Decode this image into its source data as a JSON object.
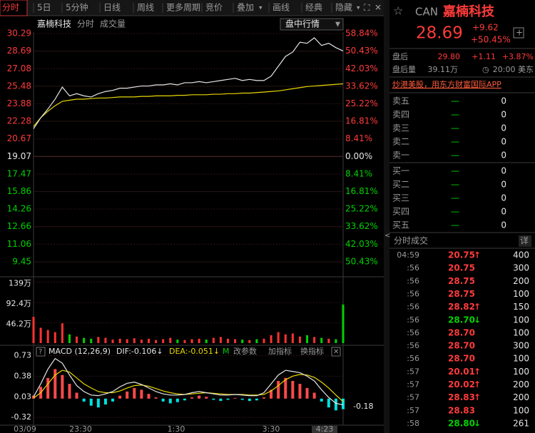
{
  "toolbar": {
    "tabs": [
      "分时",
      "5日",
      "5分钟",
      "日线",
      "周线",
      "更多周期",
      "竞价",
      "叠加",
      "画线",
      "经典",
      "隐藏"
    ]
  },
  "chart": {
    "name": "嘉楠科技",
    "labels": [
      "分时",
      "成交量"
    ],
    "mode": "盘中行情",
    "price": {
      "ylim": [
        9.45,
        30.29
      ],
      "yticks": [
        30.29,
        28.69,
        27.08,
        25.48,
        23.88,
        22.28,
        20.67,
        19.07,
        17.47,
        15.86,
        14.26,
        12.66,
        11.06,
        9.45
      ],
      "pct_ticks": [
        {
          "value": 58.84,
          "label": "58.84%"
        },
        {
          "value": 50.43,
          "label": "50.43%"
        },
        {
          "value": 42.03,
          "label": "42.03%"
        },
        {
          "value": 33.62,
          "label": "33.62%"
        },
        {
          "value": 25.22,
          "label": "25.22%"
        },
        {
          "value": 16.81,
          "label": "16.81%"
        },
        {
          "value": 8.41,
          "label": "8.41%"
        },
        {
          "value": 0,
          "label": "0.00%"
        },
        {
          "value": -8.41,
          "label": "8.41%"
        },
        {
          "value": -16.81,
          "label": "16.81%"
        },
        {
          "value": -25.22,
          "label": "25.22%"
        },
        {
          "value": -33.62,
          "label": "33.62%"
        },
        {
          "value": -42.03,
          "label": "42.03%"
        },
        {
          "value": -50.43,
          "label": "50.43%"
        }
      ],
      "values": [
        21.6,
        22.6,
        23.4,
        24.3,
        25.4,
        24.6,
        24.8,
        24.6,
        24.5,
        24.8,
        25.0,
        25.1,
        25.3,
        25.3,
        25.4,
        25.5,
        25.5,
        25.6,
        25.6,
        25.7,
        25.6,
        25.8,
        25.8,
        25.9,
        25.8,
        25.9,
        26.0,
        26.1,
        26.2,
        26.0,
        26.1,
        26.0,
        26.0,
        26.4,
        27.3,
        28.2,
        28.6,
        29.5,
        29.4,
        29.9,
        29.2,
        29.4,
        29.0,
        28.7
      ],
      "avg": [
        21.8,
        22.6,
        23.2,
        23.7,
        24.1,
        24.2,
        24.3,
        24.3,
        24.35,
        24.4,
        24.4,
        24.45,
        24.5,
        24.5,
        24.5,
        24.55,
        24.55,
        24.6,
        24.6,
        24.6,
        24.65,
        24.65,
        24.7,
        24.7,
        24.7,
        24.75,
        24.75,
        24.8,
        24.8,
        24.85,
        24.85,
        24.9,
        24.95,
        25.0,
        25.05,
        25.15,
        25.25,
        25.35,
        25.45,
        25.5,
        25.55,
        25.6,
        25.65,
        25.7
      ],
      "color": "#e6e6e6",
      "avg_color": "#e8d800"
    },
    "volume": {
      "ylim": [
        0,
        143
      ],
      "yticks": [
        {
          "value": 139,
          "label": "139万"
        },
        {
          "value": 92.4,
          "label": "92.4万"
        },
        {
          "value": 46.2,
          "label": "46.2万"
        }
      ],
      "values": [
        60,
        35,
        30,
        25,
        45,
        20,
        15,
        12,
        10,
        14,
        12,
        8,
        10,
        9,
        11,
        8,
        10,
        7,
        9,
        12,
        8,
        7,
        9,
        10,
        8,
        12,
        14,
        10,
        9,
        8,
        7,
        9,
        10,
        18,
        25,
        20,
        22,
        15,
        18,
        14,
        12,
        10,
        9,
        88
      ],
      "up_color": "#ff3232",
      "down_color": "#00d200"
    },
    "macd": {
      "title": "MACD (12,26,9)",
      "dif_label": "DIF:-0.106↓",
      "dea_label": "DEA:-0.051↓",
      "buttons": [
        "M",
        "改参数",
        "加指标",
        "换指标"
      ],
      "ylim": [
        -0.45,
        0.88
      ],
      "yticks": [
        0.73,
        0.38,
        0.03,
        -0.32
      ],
      "current": "-0.18",
      "hist": [
        0.05,
        0.2,
        0.35,
        0.5,
        0.4,
        0.25,
        0.1,
        -0.05,
        -0.12,
        -0.15,
        -0.1,
        -0.05,
        0.05,
        0.12,
        0.18,
        0.15,
        0.08,
        0.02,
        -0.05,
        -0.08,
        -0.06,
        -0.03,
        0.02,
        0.05,
        0.03,
        -0.02,
        -0.04,
        -0.02,
        0.01,
        -0.02,
        -0.04,
        -0.03,
        0.02,
        0.15,
        0.3,
        0.35,
        0.3,
        0.25,
        0.18,
        0.1,
        -0.05,
        -0.15,
        -0.2,
        -0.18
      ],
      "dif": [
        0.03,
        0.25,
        0.5,
        0.68,
        0.6,
        0.4,
        0.22,
        0.12,
        0.06,
        0.05,
        0.08,
        0.12,
        0.2,
        0.26,
        0.28,
        0.24,
        0.18,
        0.12,
        0.08,
        0.06,
        0.06,
        0.07,
        0.1,
        0.12,
        0.1,
        0.08,
        0.06,
        0.06,
        0.07,
        0.06,
        0.05,
        0.05,
        0.1,
        0.25,
        0.4,
        0.48,
        0.46,
        0.44,
        0.38,
        0.3,
        0.15,
        0.02,
        -0.08,
        -0.106
      ],
      "dea": [
        0.01,
        0.1,
        0.25,
        0.4,
        0.48,
        0.45,
        0.35,
        0.25,
        0.18,
        0.12,
        0.1,
        0.1,
        0.13,
        0.18,
        0.22,
        0.23,
        0.21,
        0.17,
        0.13,
        0.1,
        0.08,
        0.07,
        0.08,
        0.09,
        0.1,
        0.09,
        0.08,
        0.07,
        0.07,
        0.07,
        0.06,
        0.06,
        0.07,
        0.13,
        0.22,
        0.32,
        0.38,
        0.41,
        0.4,
        0.36,
        0.28,
        0.18,
        0.06,
        -0.051
      ],
      "up_color": "#ff4a4a",
      "down_color": "#00e0e0",
      "dif_color": "#e6e6e6",
      "dea_color": "#e8d800"
    },
    "time_labels": [
      "03/09",
      "23:30",
      "1:30",
      "3:30",
      "4:23"
    ]
  },
  "quote": {
    "symbol": "CAN",
    "name": "嘉楠科技",
    "price": "28.69",
    "change": "+9.62",
    "change_pct": "+50.45%",
    "after_label": "盘后",
    "after_price": "29.80",
    "after_change": "+1.11",
    "after_pct": "+3.87%",
    "after_vol_label": "盘后量",
    "after_vol": "39.11万",
    "after_time": "20:00 美东",
    "promo": "炒港美股，用东方财富国际APP"
  },
  "order_book": {
    "sell": [
      {
        "label": "卖五",
        "price": "—",
        "vol": "0"
      },
      {
        "label": "卖四",
        "price": "—",
        "vol": "0"
      },
      {
        "label": "卖三",
        "price": "—",
        "vol": "0"
      },
      {
        "label": "卖二",
        "price": "—",
        "vol": "0"
      },
      {
        "label": "卖一",
        "price": "—",
        "vol": "0"
      }
    ],
    "buy": [
      {
        "label": "买一",
        "price": "—",
        "vol": "0"
      },
      {
        "label": "买二",
        "price": "—",
        "vol": "0"
      },
      {
        "label": "买三",
        "price": "—",
        "vol": "0"
      },
      {
        "label": "买四",
        "price": "—",
        "vol": "0"
      },
      {
        "label": "买五",
        "price": "—",
        "vol": "0"
      }
    ]
  },
  "trades": {
    "title": "分时成交",
    "detail": "详",
    "rows": [
      {
        "time": "04:59",
        "price": "20.75",
        "arrow": "↑",
        "vol": "400"
      },
      {
        "time": ":56",
        "price": "20.75",
        "arrow": "",
        "vol": "300"
      },
      {
        "time": ":56",
        "price": "28.75",
        "arrow": "",
        "vol": "200"
      },
      {
        "time": ":56",
        "price": "28.75",
        "arrow": "",
        "vol": "100"
      },
      {
        "time": ":56",
        "price": "28.82",
        "arrow": "↑",
        "vol": "150"
      },
      {
        "time": ":56",
        "price": "28.70",
        "arrow": "↓",
        "vol": "100"
      },
      {
        "time": ":56",
        "price": "28.70",
        "arrow": "",
        "vol": "100"
      },
      {
        "time": ":56",
        "price": "28.70",
        "arrow": "",
        "vol": "300"
      },
      {
        "time": ":56",
        "price": "28.70",
        "arrow": "",
        "vol": "100"
      },
      {
        "time": ":57",
        "price": "20.01",
        "arrow": "↑",
        "vol": "100"
      },
      {
        "time": ":57",
        "price": "20.02",
        "arrow": "↑",
        "vol": "200"
      },
      {
        "time": ":57",
        "price": "28.83",
        "arrow": "↑",
        "vol": "200"
      },
      {
        "time": ":57",
        "price": "28.83",
        "arrow": "",
        "vol": "100"
      },
      {
        "time": ":58",
        "price": "28.80",
        "arrow": "↓",
        "vol": "261"
      }
    ]
  }
}
